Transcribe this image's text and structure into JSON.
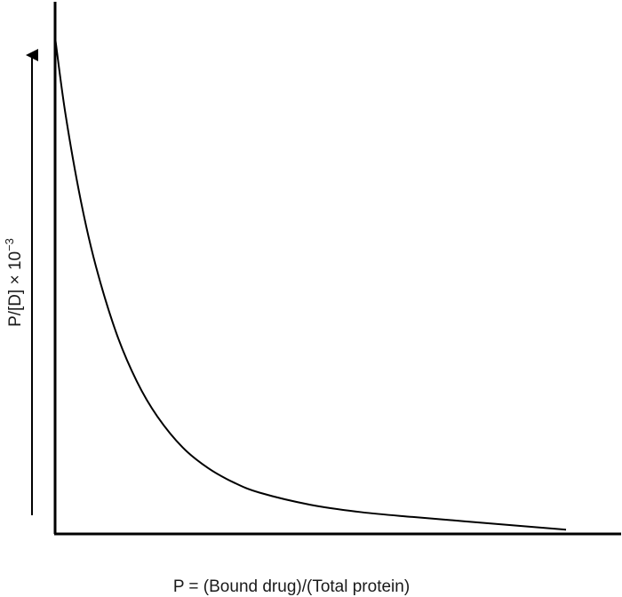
{
  "chart_data": {
    "type": "line",
    "title": "",
    "xlabel": "P = (Bound drug)/(Total protein)",
    "ylabel": "P/[D] × 10",
    "ylabel_exponent": "−3",
    "ticks_shown": false,
    "grid": false,
    "legend": "none",
    "colors": {
      "axis": "#000000",
      "curve": "#000000",
      "text": "#1a1a1a"
    },
    "xlim": [
      0,
      1
    ],
    "ylim": [
      0,
      1
    ],
    "series": [
      {
        "x": [
          0,
          0.02,
          0.05,
          0.08,
          0.12,
          0.16,
          0.2,
          0.25,
          0.3,
          0.35,
          0.4,
          0.5,
          0.6,
          0.7,
          0.8,
          0.9,
          1.0
        ],
        "y": [
          0.938,
          0.795,
          0.631,
          0.505,
          0.379,
          0.288,
          0.222,
          0.163,
          0.124,
          0.097,
          0.078,
          0.055,
          0.041,
          0.032,
          0.024,
          0.016,
          0.008
        ]
      }
    ]
  }
}
